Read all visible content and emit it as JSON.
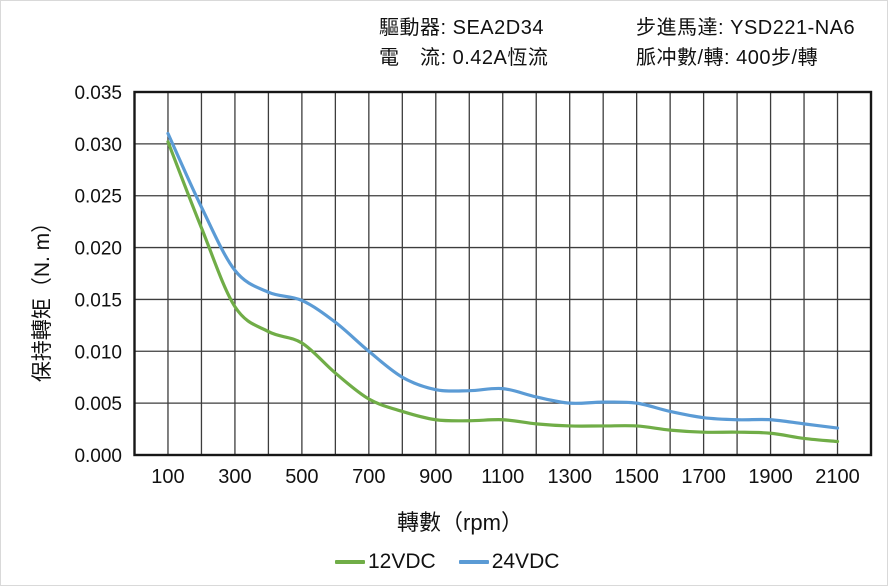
{
  "header": {
    "driver": "驅動器: SEA2D34",
    "current": "電　流: 0.42A恆流",
    "motor": "步進馬達: YSD221-NA6",
    "pulses": "脈冲數/轉: 400步/轉"
  },
  "chart_data": {
    "type": "line",
    "xlabel": "轉數（rpm）",
    "ylabel": "保持轉矩（N. m）",
    "xlim": [
      0,
      2200
    ],
    "ylim": [
      0,
      0.035
    ],
    "x_tick_step_grid": 100,
    "x_tick_labels": [
      100,
      300,
      500,
      700,
      900,
      1100,
      1300,
      1500,
      1700,
      1900,
      2100
    ],
    "y_tick_labels": [
      "0.000",
      "0.005",
      "0.010",
      "0.015",
      "0.020",
      "0.025",
      "0.030",
      "0.035"
    ],
    "grid": true,
    "legend_position": "bottom",
    "x": [
      100,
      200,
      300,
      400,
      500,
      600,
      700,
      800,
      900,
      1000,
      1100,
      1200,
      1300,
      1400,
      1500,
      1600,
      1700,
      1800,
      1900,
      2000,
      2100
    ],
    "series": [
      {
        "name": "12VDC",
        "color": "#70AD47",
        "values": [
          0.0302,
          0.0219,
          0.0143,
          0.0119,
          0.0108,
          0.0079,
          0.0054,
          0.0042,
          0.0034,
          0.0033,
          0.0034,
          0.003,
          0.0028,
          0.0028,
          0.0028,
          0.0024,
          0.0022,
          0.0022,
          0.0021,
          0.0016,
          0.0013
        ]
      },
      {
        "name": "24VDC",
        "color": "#5B9BD5",
        "values": [
          0.031,
          0.0239,
          0.0178,
          0.0157,
          0.0149,
          0.0128,
          0.01,
          0.0075,
          0.0063,
          0.0062,
          0.0064,
          0.0056,
          0.005,
          0.0051,
          0.005,
          0.0042,
          0.0036,
          0.0034,
          0.0034,
          0.003,
          0.0026
        ]
      }
    ],
    "style": {
      "grid_color": "#3d3d3d",
      "border_color": "#171717",
      "tick_color": "#111111"
    }
  }
}
